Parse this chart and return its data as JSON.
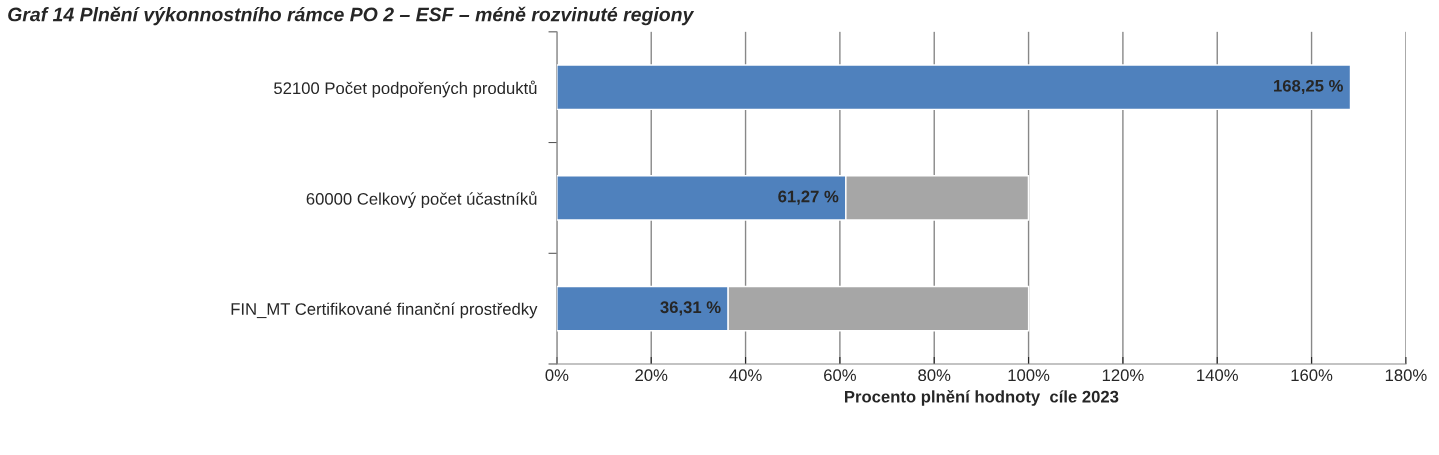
{
  "chart_data": {
    "type": "bar",
    "orientation": "horizontal",
    "stacked": true,
    "title": "Graf 14 Plnění výkonnostního rámce PO 2 – ESF – méně rozvinuté regiony",
    "xlabel": "Procento plnění hodnoty  cíle 2023",
    "categories": [
      "52100 Počet podpořených produktů",
      "60000 Celkový počet účastníků",
      "FIN_MT Certifikované finanční prostředky"
    ],
    "series": [
      {
        "color": "#4f81bd",
        "values": [
          168.25,
          61.27,
          36.31
        ],
        "value_labels": [
          "168,25 %",
          "61,27 %",
          "36,31 %"
        ]
      },
      {
        "color": "#a6a6a6",
        "values": [
          null,
          38.7,
          63.7
        ]
      }
    ],
    "xlim": [
      0,
      180
    ],
    "xticks": [
      {
        "value": 0,
        "label": "0%"
      },
      {
        "value": 20,
        "label": "20%"
      },
      {
        "value": 40,
        "label": "40%"
      },
      {
        "value": 60,
        "label": "60%"
      },
      {
        "value": 80,
        "label": "80%"
      },
      {
        "value": 100,
        "label": "100%"
      },
      {
        "value": 120,
        "label": "120%"
      },
      {
        "value": 140,
        "label": "140%"
      },
      {
        "value": 160,
        "label": "160%"
      },
      {
        "value": 180,
        "label": "180%"
      }
    ],
    "grid": "x",
    "legend": false
  }
}
